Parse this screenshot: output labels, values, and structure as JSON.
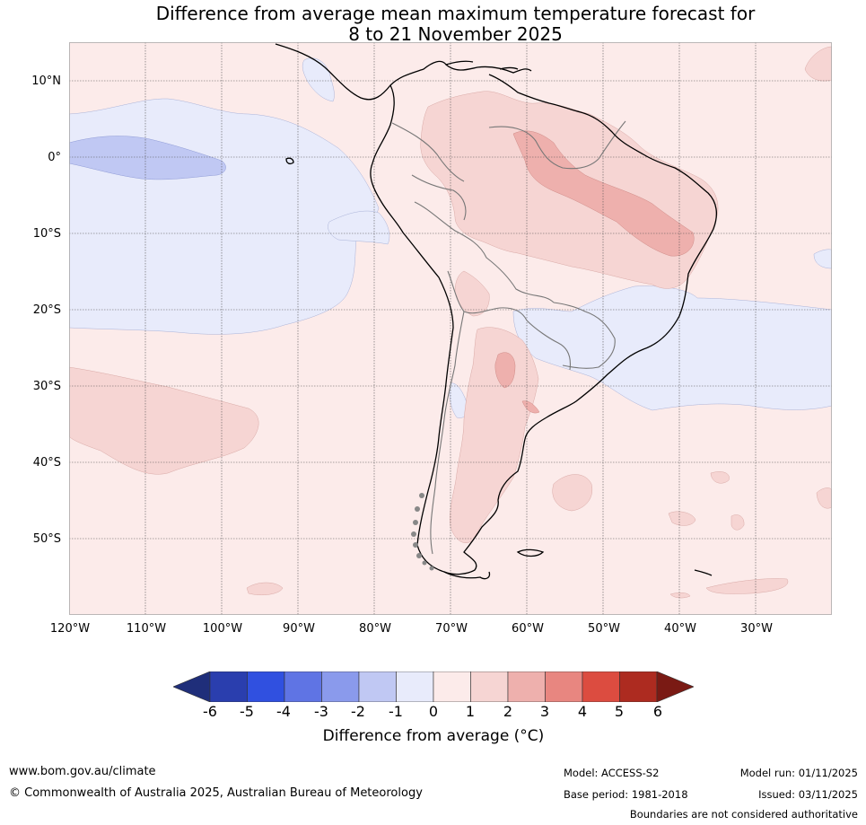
{
  "title": {
    "line1": "Difference from average mean maximum temperature forecast for",
    "line2": "8 to 21 November 2025"
  },
  "map": {
    "lat_labels": [
      "10°N",
      "0°",
      "10°S",
      "20°S",
      "30°S",
      "40°S",
      "50°S"
    ],
    "lon_labels": [
      "120°W",
      "110°W",
      "100°W",
      "90°W",
      "80°W",
      "70°W",
      "60°W",
      "50°W",
      "40°W",
      "30°W"
    ]
  },
  "colorbar": {
    "ticks": [
      "-6",
      "-5",
      "-4",
      "-3",
      "-2",
      "-1",
      "0",
      "1",
      "2",
      "3",
      "4",
      "5",
      "6"
    ],
    "colors": [
      "#1f2e7a",
      "#2a3eae",
      "#3050e0",
      "#5f74e4",
      "#8a9aec",
      "#c0c8f3",
      "#e8ebfb",
      "#fcebea",
      "#f6d5d3",
      "#eeb0ad",
      "#e88680",
      "#dc4c40",
      "#ad2b20",
      "#7a1a14"
    ],
    "label": "Difference from average (°C)"
  },
  "footer": {
    "website": "www.bom.gov.au/climate",
    "copyright": "© Commonwealth of Australia 2025, Australian Bureau of Meteorology",
    "model": "Model: ACCESS-S2",
    "base_period": "Base period: 1981-2018",
    "model_run": "Model run: 01/11/2025",
    "issued": "Issued: 03/11/2025",
    "disclaimer": "Boundaries are not considered authoritative"
  }
}
